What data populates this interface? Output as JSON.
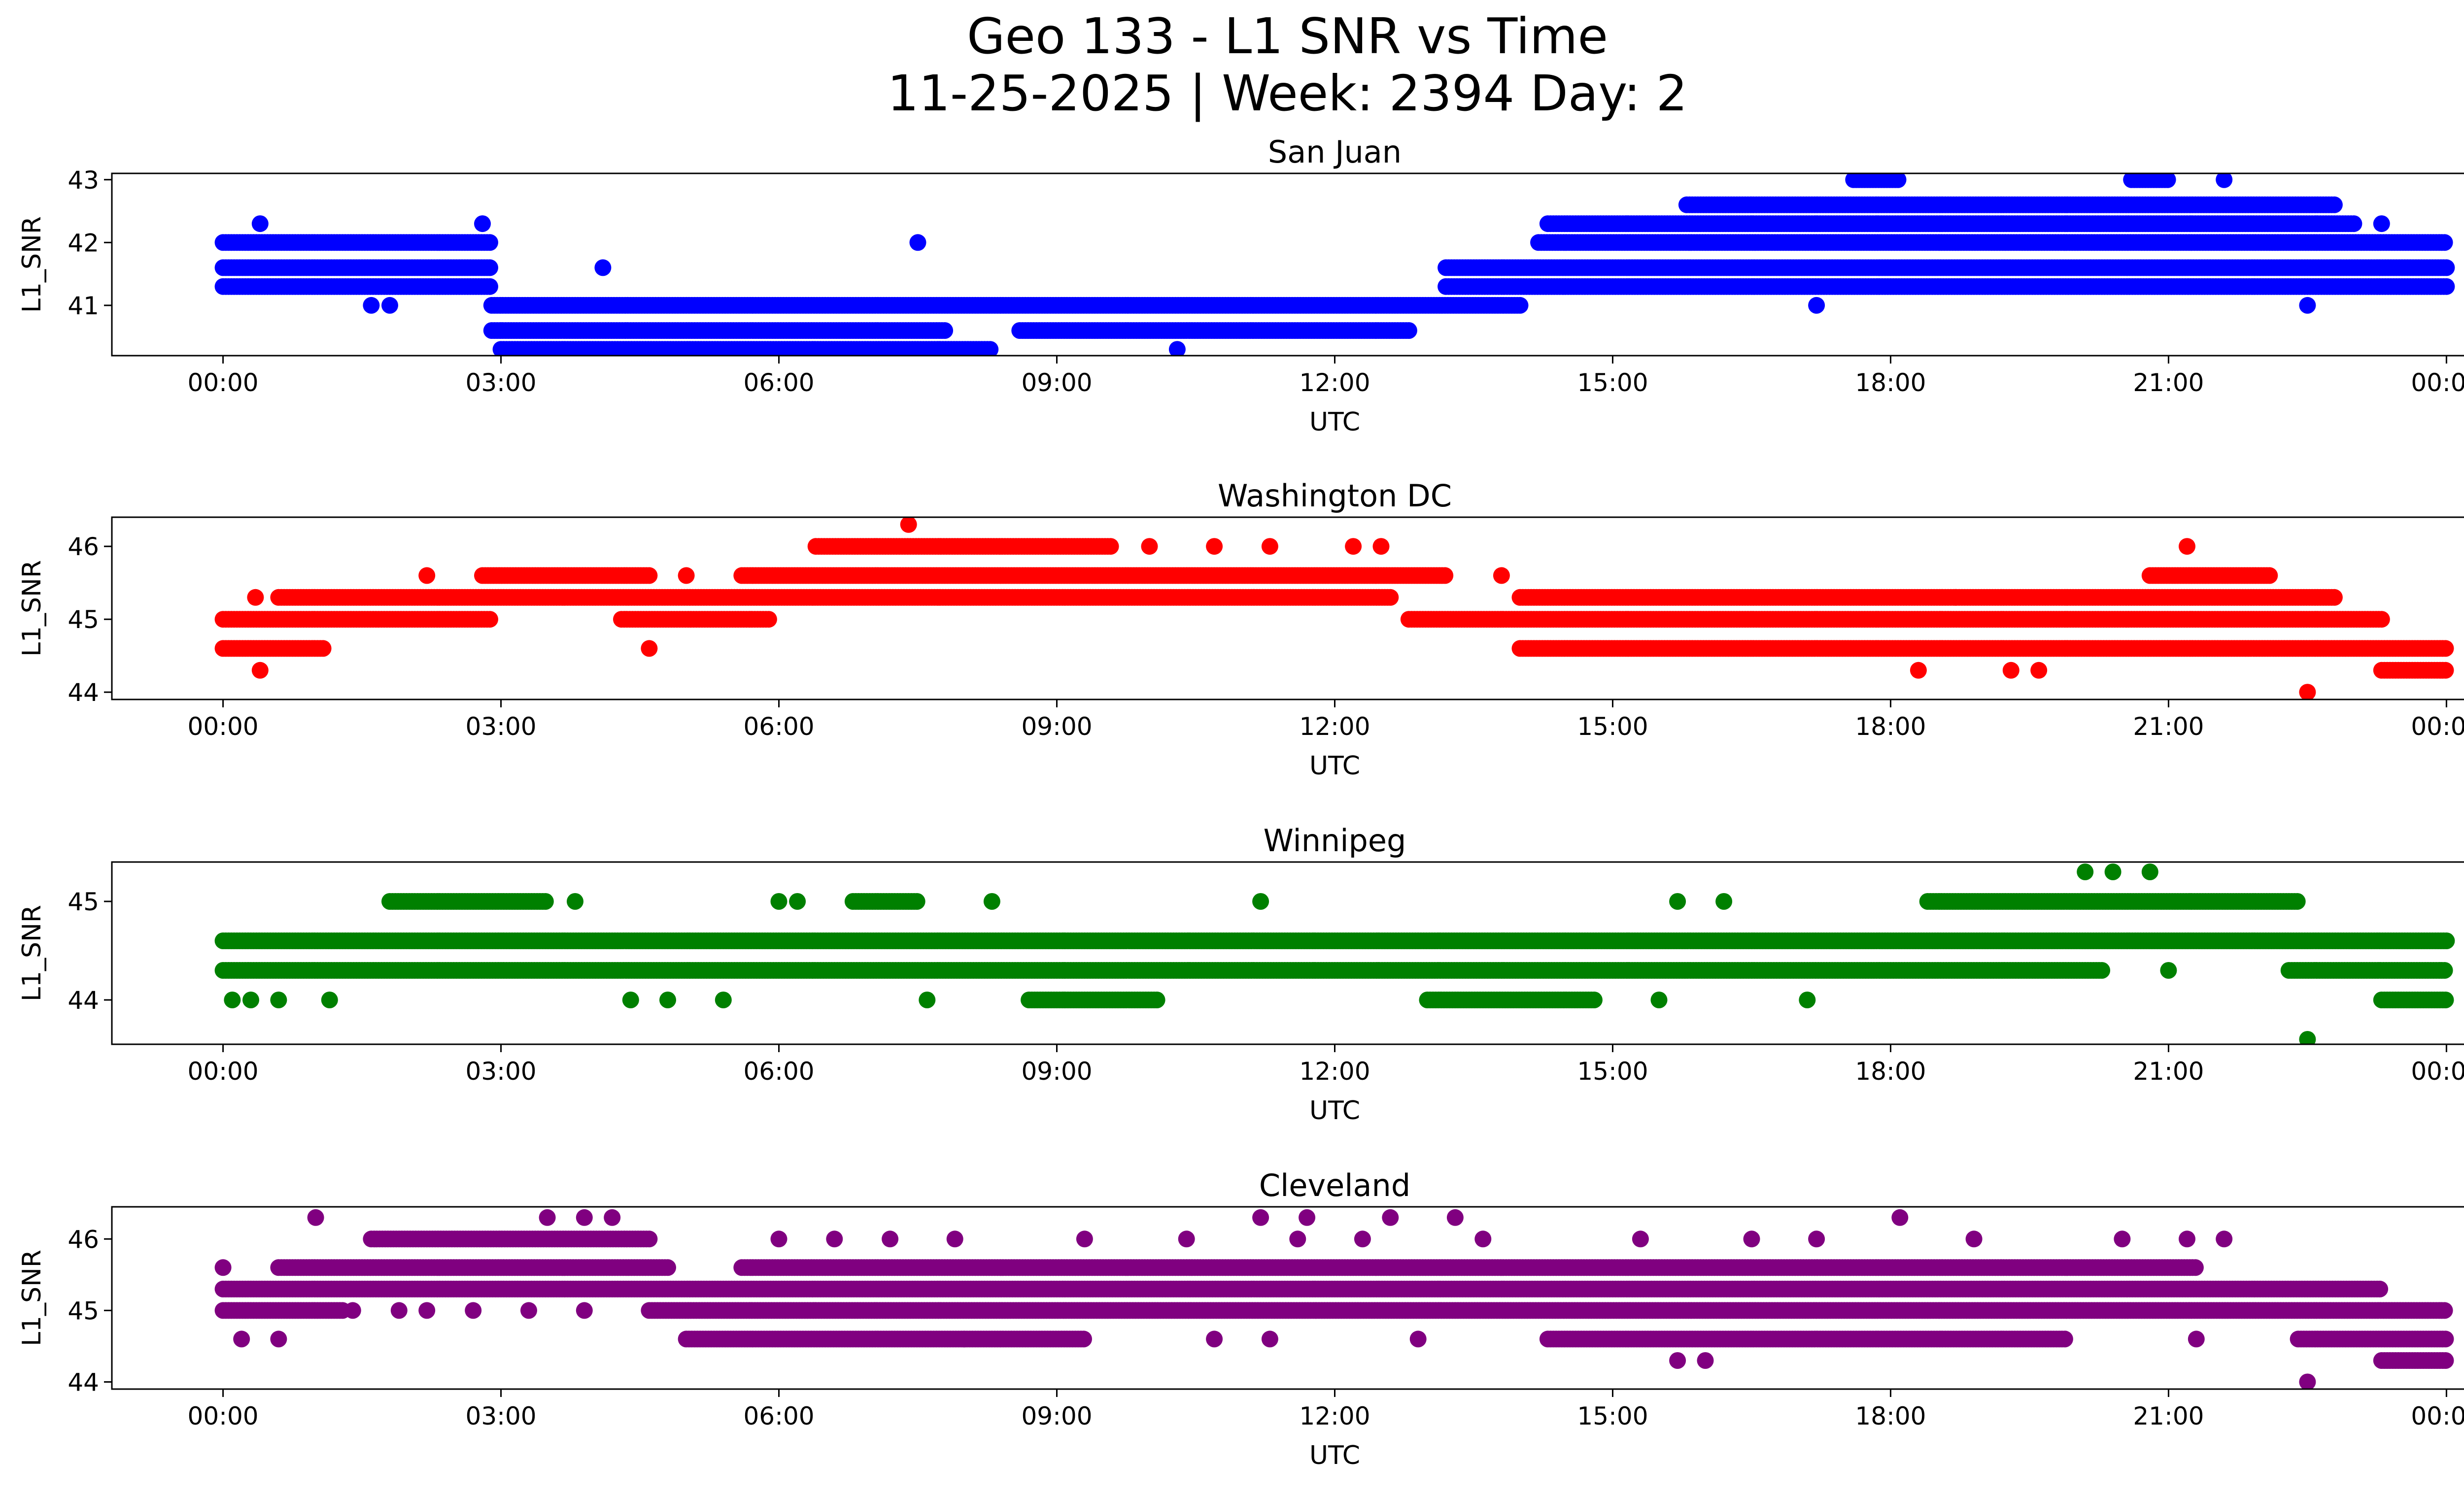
{
  "figure": {
    "title_line1": "Geo 133 - L1 SNR vs Time",
    "title_line2": "11-25-2025 | Week: 2394 Day: 2"
  },
  "chart_data": [
    {
      "type": "scatter",
      "title": "San Juan",
      "xlabel": "UTC",
      "ylabel": "L1_SNR",
      "color": "#0000ff",
      "x_ticks": [
        "00:00",
        "03:00",
        "06:00",
        "09:00",
        "12:00",
        "15:00",
        "18:00",
        "21:00",
        "00:00"
      ],
      "y_ticks": [
        41,
        42,
        43
      ],
      "ylim": [
        40.2,
        43.1
      ],
      "xlim_hours": [
        -1.2,
        25.2
      ],
      "levels": [
        {
          "y": 41.3,
          "ranges": [
            [
              0,
              2.9
            ],
            [
              13.2,
              24
            ]
          ]
        },
        {
          "y": 41.6,
          "ranges": [
            [
              0,
              2.9
            ],
            [
              13.2,
              24
            ]
          ]
        },
        {
          "y": 42.0,
          "ranges": [
            [
              0,
              2.9
            ],
            [
              14.2,
              24
            ]
          ]
        },
        {
          "y": 41.0,
          "ranges": [
            [
              2.9,
              14.0
            ]
          ]
        },
        {
          "y": 40.6,
          "ranges": [
            [
              2.9,
              7.8
            ],
            [
              8.6,
              12.8
            ]
          ]
        },
        {
          "y": 40.3,
          "ranges": [
            [
              3.0,
              8.3
            ]
          ]
        },
        {
          "y": 42.3,
          "ranges": [
            [
              14.3,
              23.0
            ]
          ]
        },
        {
          "y": 42.6,
          "ranges": [
            [
              15.8,
              22.8
            ]
          ]
        },
        {
          "y": 43.0,
          "ranges": [
            [
              17.6,
              18.1
            ],
            [
              20.6,
              21.0
            ]
          ]
        }
      ],
      "outliers": [
        {
          "x": 7.5,
          "y": 42.0
        },
        {
          "x": 10.3,
          "y": 40.3
        },
        {
          "x": 1.6,
          "y": 41.0
        },
        {
          "x": 1.8,
          "y": 41.0
        },
        {
          "x": 17.2,
          "y": 41.0
        },
        {
          "x": 22.5,
          "y": 41.0
        },
        {
          "x": 2.8,
          "y": 42.3
        },
        {
          "x": 0.4,
          "y": 42.3
        },
        {
          "x": 4.1,
          "y": 41.6
        },
        {
          "x": 23.3,
          "y": 42.3
        },
        {
          "x": 21.6,
          "y": 43.0
        }
      ]
    },
    {
      "type": "scatter",
      "title": "Washington DC",
      "xlabel": "UTC",
      "ylabel": "L1_SNR",
      "color": "#ff0000",
      "x_ticks": [
        "00:00",
        "03:00",
        "06:00",
        "09:00",
        "12:00",
        "15:00",
        "18:00",
        "21:00",
        "00:00"
      ],
      "y_ticks": [
        44,
        45,
        46
      ],
      "ylim": [
        43.9,
        46.4
      ],
      "xlim_hours": [
        -1.2,
        25.2
      ],
      "levels": [
        {
          "y": 45.0,
          "ranges": [
            [
              0,
              2.9
            ],
            [
              4.3,
              5.9
            ],
            [
              12.8,
              23.3
            ]
          ]
        },
        {
          "y": 44.6,
          "ranges": [
            [
              0,
              1.1
            ],
            [
              14.0,
              24
            ]
          ]
        },
        {
          "y": 45.3,
          "ranges": [
            [
              0.6,
              12.6
            ],
            [
              14.0,
              22.8
            ]
          ]
        },
        {
          "y": 45.6,
          "ranges": [
            [
              2.8,
              4.6
            ],
            [
              5.6,
              13.2
            ],
            [
              20.8,
              22.1
            ]
          ]
        },
        {
          "y": 46.0,
          "ranges": [
            [
              6.4,
              9.6
            ]
          ]
        },
        {
          "y": 44.3,
          "ranges": [
            [
              23.3,
              24
            ]
          ]
        }
      ],
      "outliers": [
        {
          "x": 7.4,
          "y": 46.3
        },
        {
          "x": 0.4,
          "y": 44.3
        },
        {
          "x": 0.35,
          "y": 45.3
        },
        {
          "x": 2.2,
          "y": 45.6
        },
        {
          "x": 4.6,
          "y": 44.6
        },
        {
          "x": 5.0,
          "y": 45.6
        },
        {
          "x": 10.0,
          "y": 46.0
        },
        {
          "x": 10.7,
          "y": 46.0
        },
        {
          "x": 11.3,
          "y": 46.0
        },
        {
          "x": 12.2,
          "y": 46.0
        },
        {
          "x": 12.5,
          "y": 46.0
        },
        {
          "x": 21.2,
          "y": 46.0
        },
        {
          "x": 18.3,
          "y": 44.3
        },
        {
          "x": 19.3,
          "y": 44.3
        },
        {
          "x": 19.6,
          "y": 44.3
        },
        {
          "x": 22.5,
          "y": 44.0
        },
        {
          "x": 18.7,
          "y": 45.3
        },
        {
          "x": 13.8,
          "y": 45.6
        }
      ]
    },
    {
      "type": "scatter",
      "title": "Winnipeg",
      "xlabel": "UTC",
      "ylabel": "L1_SNR",
      "color": "#008000",
      "x_ticks": [
        "00:00",
        "03:00",
        "06:00",
        "09:00",
        "12:00",
        "15:00",
        "18:00",
        "21:00",
        "00:00"
      ],
      "y_ticks": [
        44,
        45
      ],
      "ylim": [
        43.55,
        45.4
      ],
      "xlim_hours": [
        -1.2,
        25.2
      ],
      "levels": [
        {
          "y": 44.6,
          "ranges": [
            [
              0,
              24
            ]
          ]
        },
        {
          "y": 44.3,
          "ranges": [
            [
              0,
              20.3
            ],
            [
              22.3,
              24
            ]
          ]
        },
        {
          "y": 45.0,
          "ranges": [
            [
              1.8,
              3.5
            ],
            [
              6.8,
              7.5
            ],
            [
              18.4,
              22.4
            ]
          ]
        },
        {
          "y": 44.0,
          "ranges": [
            [
              8.7,
              10.1
            ],
            [
              13.0,
              14.8
            ],
            [
              23.3,
              24
            ]
          ]
        }
      ],
      "outliers": [
        {
          "x": 0.1,
          "y": 44.0
        },
        {
          "x": 0.3,
          "y": 44.0
        },
        {
          "x": 0.6,
          "y": 44.0
        },
        {
          "x": 1.15,
          "y": 44.0
        },
        {
          "x": 4.4,
          "y": 44.0
        },
        {
          "x": 4.8,
          "y": 44.0
        },
        {
          "x": 5.4,
          "y": 44.0
        },
        {
          "x": 7.6,
          "y": 44.0
        },
        {
          "x": 11.2,
          "y": 45.0
        },
        {
          "x": 6.0,
          "y": 45.0
        },
        {
          "x": 6.2,
          "y": 45.0
        },
        {
          "x": 8.3,
          "y": 45.0
        },
        {
          "x": 15.7,
          "y": 45.0
        },
        {
          "x": 16.2,
          "y": 45.0
        },
        {
          "x": 17.1,
          "y": 44.0
        },
        {
          "x": 15.5,
          "y": 44.0
        },
        {
          "x": 20.1,
          "y": 45.3
        },
        {
          "x": 20.4,
          "y": 45.3
        },
        {
          "x": 20.8,
          "y": 45.3
        },
        {
          "x": 22.5,
          "y": 43.6
        },
        {
          "x": 21.0,
          "y": 44.3
        },
        {
          "x": 3.8,
          "y": 45.0
        }
      ]
    },
    {
      "type": "scatter",
      "title": "Cleveland",
      "xlabel": "UTC",
      "ylabel": "L1_SNR",
      "color": "#800080",
      "x_ticks": [
        "00:00",
        "03:00",
        "06:00",
        "09:00",
        "12:00",
        "15:00",
        "18:00",
        "21:00",
        "00:00"
      ],
      "y_ticks": [
        44,
        45,
        46
      ],
      "ylim": [
        43.9,
        46.45
      ],
      "xlim_hours": [
        -1.2,
        25.2
      ],
      "levels": [
        {
          "y": 45.3,
          "ranges": [
            [
              0,
              23.3
            ]
          ]
        },
        {
          "y": 45.0,
          "ranges": [
            [
              0,
              1.3
            ],
            [
              4.6,
              24
            ]
          ]
        },
        {
          "y": 45.6,
          "ranges": [
            [
              0.6,
              4.8
            ],
            [
              5.6,
              21.3
            ]
          ]
        },
        {
          "y": 46.0,
          "ranges": [
            [
              1.6,
              4.6
            ]
          ]
        },
        {
          "y": 44.6,
          "ranges": [
            [
              5.0,
              9.3
            ],
            [
              14.3,
              19.9
            ],
            [
              22.4,
              24
            ]
          ]
        },
        {
          "y": 44.3,
          "ranges": [
            [
              23.3,
              24
            ]
          ]
        }
      ],
      "outliers": [
        {
          "x": 1.0,
          "y": 46.3
        },
        {
          "x": 3.5,
          "y": 46.3
        },
        {
          "x": 3.9,
          "y": 46.3
        },
        {
          "x": 4.2,
          "y": 46.3
        },
        {
          "x": 11.2,
          "y": 46.3
        },
        {
          "x": 11.7,
          "y": 46.3
        },
        {
          "x": 12.6,
          "y": 46.3
        },
        {
          "x": 13.3,
          "y": 46.3
        },
        {
          "x": 18.1,
          "y": 46.3
        },
        {
          "x": 22.5,
          "y": 44.0
        },
        {
          "x": 15.7,
          "y": 44.3
        },
        {
          "x": 16.0,
          "y": 44.3
        },
        {
          "x": 0.0,
          "y": 45.6
        },
        {
          "x": 0.2,
          "y": 44.6
        },
        {
          "x": 0.6,
          "y": 44.6
        },
        {
          "x": 6.0,
          "y": 46.0
        },
        {
          "x": 6.6,
          "y": 46.0
        },
        {
          "x": 7.2,
          "y": 46.0
        },
        {
          "x": 7.9,
          "y": 46.0
        },
        {
          "x": 9.3,
          "y": 46.0
        },
        {
          "x": 10.4,
          "y": 46.0
        },
        {
          "x": 11.6,
          "y": 46.0
        },
        {
          "x": 12.3,
          "y": 46.0
        },
        {
          "x": 13.6,
          "y": 46.0
        },
        {
          "x": 15.3,
          "y": 46.0
        },
        {
          "x": 16.5,
          "y": 46.0
        },
        {
          "x": 17.2,
          "y": 46.0
        },
        {
          "x": 18.9,
          "y": 46.0
        },
        {
          "x": 20.5,
          "y": 46.0
        },
        {
          "x": 21.2,
          "y": 46.0
        },
        {
          "x": 21.6,
          "y": 46.0
        },
        {
          "x": 12.9,
          "y": 44.6
        },
        {
          "x": 10.7,
          "y": 44.6
        },
        {
          "x": 11.3,
          "y": 44.6
        },
        {
          "x": 8.0,
          "y": 44.6
        },
        {
          "x": 21.3,
          "y": 44.6
        },
        {
          "x": 1.4,
          "y": 45.0
        },
        {
          "x": 1.9,
          "y": 45.0
        },
        {
          "x": 2.2,
          "y": 45.0
        },
        {
          "x": 2.7,
          "y": 45.0
        },
        {
          "x": 3.3,
          "y": 45.0
        },
        {
          "x": 3.9,
          "y": 45.0
        }
      ]
    }
  ]
}
